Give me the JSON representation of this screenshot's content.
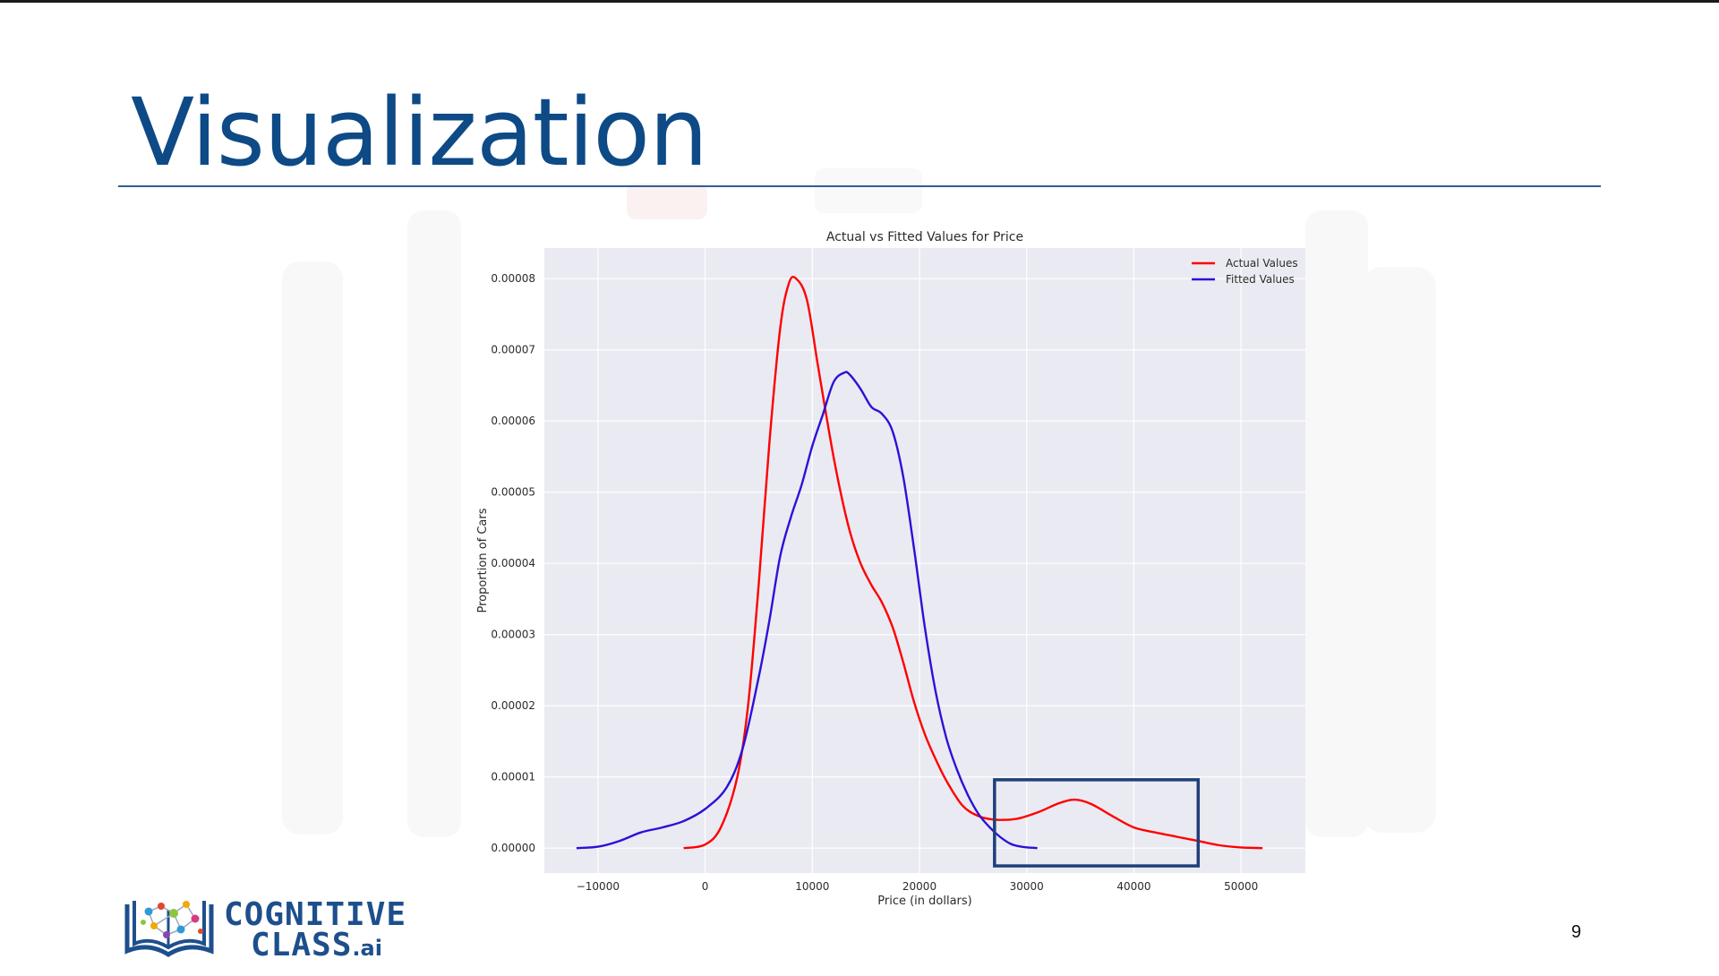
{
  "slide": {
    "title": "Visualization",
    "page_number": "9"
  },
  "logo": {
    "line1": "COGNITIVE",
    "line2": "CLASS",
    "suffix": ".ai"
  },
  "colors": {
    "title": "#0d4a86",
    "actual": "#ff0000",
    "fitted": "#2a12d8",
    "highlight_box": "#1f3f7a",
    "plot_bg": "#eaeaf2"
  },
  "chart_data": {
    "type": "line",
    "title": "Actual vs Fitted Values for Price",
    "xlabel": "Price (in dollars)",
    "ylabel": "Proportion of Cars",
    "xlim": [
      -15000,
      56000
    ],
    "ylim": [
      -3.5e-06,
      8.43e-05
    ],
    "x_ticks": [
      -10000,
      0,
      10000,
      20000,
      30000,
      40000,
      50000
    ],
    "x_tick_labels": [
      "−10000",
      "0",
      "10000",
      "20000",
      "30000",
      "40000",
      "50000"
    ],
    "y_ticks": [
      0,
      1e-05,
      2e-05,
      3e-05,
      4e-05,
      5e-05,
      6e-05,
      7e-05,
      8e-05
    ],
    "y_tick_labels": [
      "0.00000",
      "0.00001",
      "0.00002",
      "0.00003",
      "0.00004",
      "0.00005",
      "0.00006",
      "0.00007",
      "0.00008"
    ],
    "grid": true,
    "legend_position": "top-right",
    "series": [
      {
        "name": "Actual Values",
        "color": "#ff0000",
        "x": [
          -2000,
          0,
          1500,
          3000,
          4000,
          5000,
          6000,
          7000,
          7800,
          8500,
          9500,
          10500,
          11500,
          12500,
          13500,
          14500,
          15500,
          16500,
          17500,
          18500,
          19500,
          20500,
          21500,
          22500,
          24000,
          25500,
          27000,
          29000,
          31000,
          33000,
          34500,
          36000,
          38000,
          40000,
          42000,
          44000,
          46000,
          48000,
          50000,
          52000
        ],
        "y": [
          0,
          5e-07,
          3e-06,
          1e-05,
          2e-05,
          3.7e-05,
          5.7e-05,
          7.3e-05,
          7.93e-05,
          8e-05,
          7.7e-05,
          6.8e-05,
          5.9e-05,
          5.1e-05,
          4.45e-05,
          4e-05,
          3.7e-05,
          3.45e-05,
          3.1e-05,
          2.6e-05,
          2.05e-05,
          1.6e-05,
          1.25e-05,
          9.5e-06,
          6e-06,
          4.5e-06,
          4e-06,
          4.1e-06,
          5e-06,
          6.3e-06,
          6.8e-06,
          6.2e-06,
          4.5e-06,
          2.9e-06,
          2.2e-06,
          1.6e-06,
          1e-06,
          4e-07,
          1e-07,
          0
        ]
      },
      {
        "name": "Fitted Values",
        "color": "#2a12d8",
        "x": [
          -12000,
          -10000,
          -8000,
          -6000,
          -4000,
          -2000,
          0,
          2000,
          3500,
          5000,
          6000,
          7000,
          8000,
          9000,
          10000,
          11000,
          12000,
          13000,
          13500,
          14500,
          15500,
          16500,
          17500,
          18500,
          19500,
          20500,
          21500,
          22500,
          23500,
          24500,
          25500,
          26500,
          27500,
          28500,
          29500,
          31000
        ],
        "y": [
          0,
          2e-07,
          1e-06,
          2.2e-06,
          2.9e-06,
          3.8e-06,
          5.5e-06,
          8.5e-06,
          1.4e-05,
          2.4e-05,
          3.2e-05,
          4.1e-05,
          4.65e-05,
          5.1e-05,
          5.65e-05,
          6.1e-05,
          6.55e-05,
          6.68e-05,
          6.65e-05,
          6.45e-05,
          6.2e-05,
          6.1e-05,
          5.85e-05,
          5.2e-05,
          4.2e-05,
          3.1e-05,
          2.2e-05,
          1.55e-05,
          1.1e-05,
          7.5e-06,
          4.8e-06,
          3e-06,
          1.6e-06,
          6e-07,
          2e-07,
          0
        ]
      }
    ],
    "annotations": [
      {
        "type": "rectangle",
        "x_range": [
          27000,
          46000
        ],
        "y_range": [
          -2.5e-06,
          9.6e-06
        ],
        "color": "#1f3f7a"
      }
    ]
  }
}
